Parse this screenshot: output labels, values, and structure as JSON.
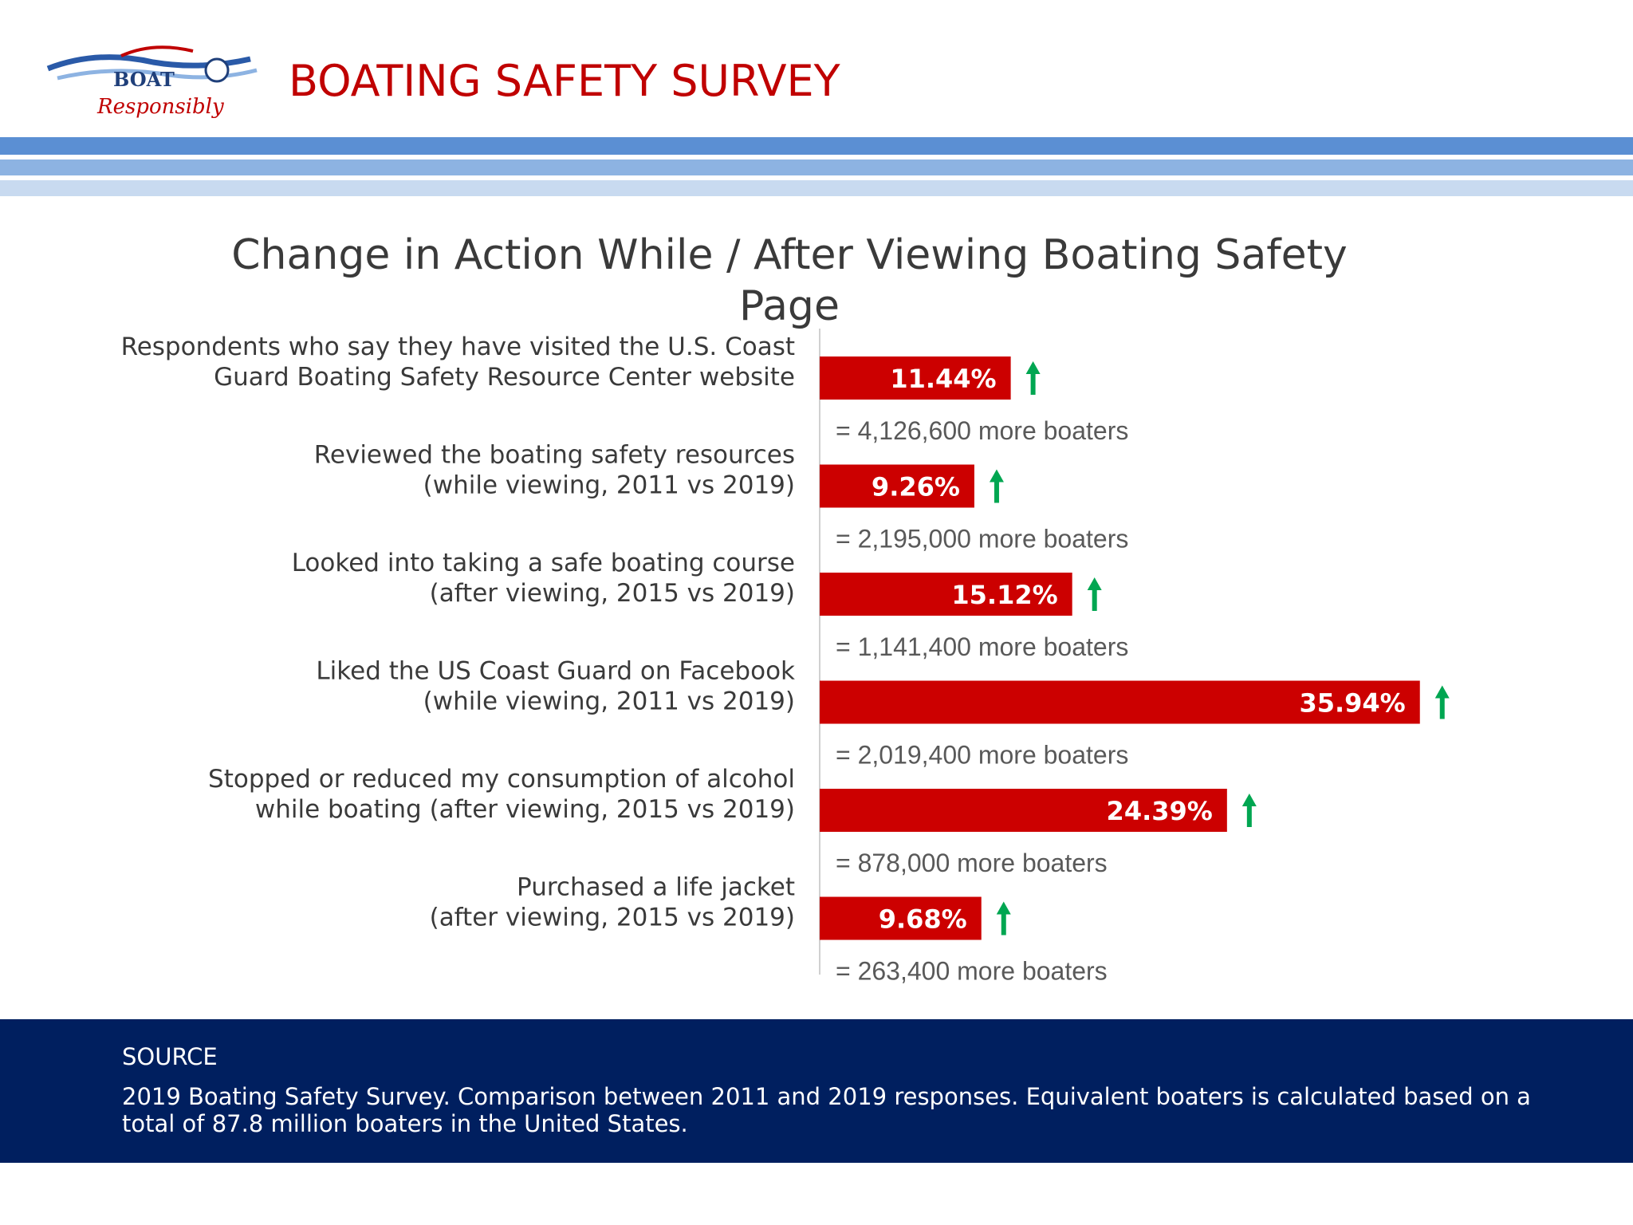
{
  "header": {
    "title": "BOATING SAFETY SURVEY",
    "logo_text": {
      "line1": "BOAT",
      "line2": "Responsibly"
    }
  },
  "colors": {
    "header_title": "#c00000",
    "bar": "#cc0000",
    "arrow": "#00a651",
    "footer_bg": "#001f5f",
    "stripes": [
      "#5b8fd3",
      "#8db3e2",
      "#c8daf0"
    ]
  },
  "chart_data": {
    "type": "bar",
    "orientation": "horizontal",
    "title": "Change in Action While / After Viewing Boating Safety Page",
    "categories": [
      [
        "Respondents who say they have visited the U.S. Coast",
        "Guard Boating Safety Resource Center website"
      ],
      [
        "Reviewed the boating safety resources",
        "(while viewing, 2011 vs 2019)"
      ],
      [
        "Looked into taking a safe boating course",
        "(after viewing, 2015 vs 2019)"
      ],
      [
        "Liked the US Coast Guard on Facebook",
        "(while viewing, 2011 vs 2019)"
      ],
      [
        "Stopped or reduced my consumption of alcohol",
        "while boating (after viewing, 2015 vs 2019)"
      ],
      [
        "Purchased a life jacket",
        "(after viewing, 2015 vs 2019)"
      ]
    ],
    "values": [
      11.44,
      9.26,
      15.12,
      35.94,
      24.39,
      9.68
    ],
    "value_labels": [
      "11.44%",
      "9.26%",
      "15.12%",
      "35.94%",
      "24.39%",
      "9.68%"
    ],
    "boaters_labels": [
      "= 4,126,600 more boaters",
      "= 2,195,000 more boaters",
      "= 1,141,400 more boaters",
      "= 2,019,400 more boaters",
      "= 878,000 more boaters",
      "= 263,400 more boaters"
    ],
    "trend": "up",
    "xlim": [
      0,
      36
    ]
  },
  "footer": {
    "heading": "SOURCE",
    "text": "2019 Boating Safety Survey. Comparison between 2011 and 2019 responses. Equivalent boaters is calculated based on a total of 87.8 million boaters in the United States."
  }
}
